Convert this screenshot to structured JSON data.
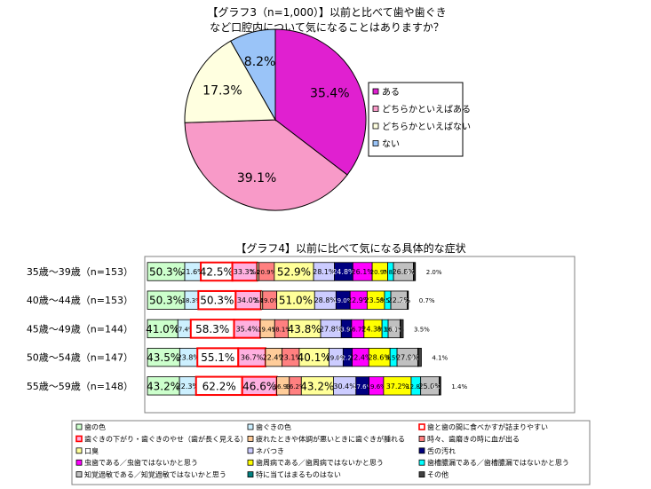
{
  "chart_data": [
    {
      "type": "pie",
      "title_lines": [
        "【グラフ3（n=1,000）】以前と比べて歯や歯ぐき",
        "など口腔内について気になることはありますか？"
      ],
      "categories": [
        "ある",
        "どちらかといえばある",
        "どちらかといえばない",
        "ない"
      ],
      "values": [
        35.4,
        39.1,
        17.3,
        8.2
      ],
      "labels": [
        "35.4%",
        "39.1%",
        "17.3%",
        "8.2%"
      ],
      "colors": [
        "#e020d0",
        "#f89ac8",
        "#ffffe0",
        "#9ac4f8"
      ],
      "legend_position": "right"
    },
    {
      "type": "bar",
      "orientation": "horizontal",
      "stacked": true,
      "title": "【グラフ4】以前に比べて気になる具体的な症状",
      "categories": [
        "35歳～39歳（n=153）",
        "40歳～44歳（n=153）",
        "45歳～49歳（n=144）",
        "50歳～54歳（n=147）",
        "55歳～59歳（n=148）"
      ],
      "legend_position": "bottom",
      "series": [
        {
          "name": "歯の色",
          "color": "#ccffcc",
          "values": [
            50.3,
            50.3,
            41.0,
            43.5,
            43.2
          ],
          "labels": [
            "50.3%",
            "50.3%",
            "41.0%",
            "43.5%",
            "43.2%"
          ]
        },
        {
          "name": "歯ぐきの色",
          "color": "#ccf0ff",
          "values": [
            21.6,
            18.3,
            17.4,
            23.8,
            22.3
          ],
          "labels": [
            "21.6%",
            "18.3%",
            "17.4%",
            "23.8%",
            "22.3%"
          ]
        },
        {
          "name": "歯と歯の間に食べかすが詰まりやすい",
          "color": "#ffffff",
          "red_border": true,
          "values": [
            42.5,
            50.3,
            58.3,
            55.1,
            62.2
          ],
          "labels": [
            "42.5%",
            "50.3%",
            "58.3%",
            "55.1%",
            "62.2%"
          ]
        },
        {
          "name": "歯ぐきの下がり・歯ぐきのやせ（歯が長く見える）",
          "color": "#ffb0e0",
          "red_border": true,
          "values": [
            33.3,
            34.0,
            35.4,
            36.7,
            46.6
          ],
          "labels": [
            "33.3%",
            "34.0%",
            "35.4%",
            "36.7%",
            "46.6%"
          ]
        },
        {
          "name": "疲れたときや体調が悪いときに歯ぐきが腫れる",
          "color": "#ffcc99",
          "values": [
            2.4,
            2.4,
            19.4,
            22.4,
            16.9
          ],
          "labels": [
            "2.4%",
            "2.4%",
            "19.4%",
            "22.4%",
            "16.9%"
          ]
        },
        {
          "name": "時々、歯磨きの時に血が出る",
          "color": "#ff8080",
          "values": [
            20.9,
            19.0,
            18.1,
            23.1,
            16.2
          ],
          "labels": [
            "20.9%",
            "19.0%",
            "18.1%",
            "23.1%",
            "16.2%"
          ]
        },
        {
          "name": "口臭",
          "color": "#ffff99",
          "values": [
            52.9,
            51.0,
            43.8,
            40.1,
            43.2
          ],
          "labels": [
            "52.9%",
            "51.0%",
            "43.8%",
            "40.1%",
            "43.2%"
          ]
        },
        {
          "name": "ネバつき",
          "color": "#ccccff",
          "values": [
            28.1,
            28.8,
            27.8,
            19.0,
            30.4
          ],
          "labels": [
            "28.1%",
            "28.8%",
            "27.8%",
            "19.0%",
            "30.4%"
          ]
        },
        {
          "name": "舌の汚れ",
          "color": "#000080",
          "values": [
            24.8,
            19.0,
            13.9,
            12.2,
            17.6
          ],
          "labels": [
            "24.8%",
            "19.0%",
            "13.9%",
            "12.2%",
            "17.6%"
          ]
        },
        {
          "name": "虫歯である／虫歯ではないかと思う",
          "color": "#ff00ff",
          "values": [
            26.1,
            22.9,
            16.7,
            22.4,
            19.6
          ],
          "labels": [
            "26.1%",
            "22.9%",
            "16.7%",
            "22.4%",
            "19.6%"
          ]
        },
        {
          "name": "歯周病である／歯周病ではないかと思う",
          "color": "#ffff00",
          "values": [
            20.9,
            23.5,
            24.3,
            28.6,
            37.2
          ],
          "labels": [
            "20.9%",
            "23.5%",
            "24.3%",
            "28.6%",
            "37.2%"
          ]
        },
        {
          "name": "歯槽膿漏である／歯槽膿漏ではないかと思う",
          "color": "#00ffff",
          "values": [
            7.8,
            8.5,
            8.3,
            9.5,
            12.8
          ],
          "labels": [
            "7.8%",
            "8.5%",
            "8.3%",
            "9.5%",
            "12.8%"
          ]
        },
        {
          "name": "知覚過敏である／知覚過敏ではないかと思う",
          "color": "#c0c0c0",
          "values": [
            26.8,
            22.2,
            16.1,
            27.9,
            25.0
          ],
          "labels": [
            "26.8%",
            "22.2%",
            "16.1%",
            "27.9%",
            "25.0%"
          ]
        },
        {
          "name": "特に当てはまるものはない",
          "color": "#008080",
          "values": [
            0.7,
            0.7,
            0.7,
            0.7,
            0.7
          ],
          "labels": [
            "0.7%",
            "0.7%",
            "0.7%",
            "0.7%",
            "0.7%"
          ]
        },
        {
          "name": "その他",
          "color": "#404040",
          "values": [
            2.0,
            0.7,
            3.5,
            4.1,
            1.4
          ],
          "labels": [
            "2.0%",
            "0.7%",
            "3.5%",
            "4.1%",
            "1.4%"
          ]
        }
      ]
    }
  ]
}
